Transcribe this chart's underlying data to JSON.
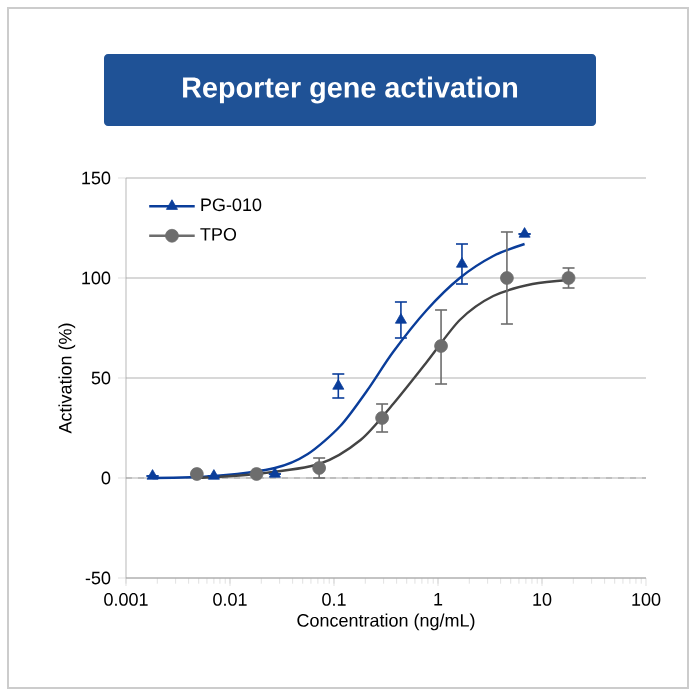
{
  "chart_data": {
    "type": "scatter",
    "title": "Reporter gene activation",
    "xlabel": "Concentration (ng/mL)",
    "ylabel": "Activation (%)",
    "log": "x",
    "xlim": [
      0.001,
      100
    ],
    "xticks": [
      0.001,
      0.01,
      0.1,
      1,
      10,
      100
    ],
    "ylim": [
      -50,
      150
    ],
    "yticks": [
      -50,
      0,
      50,
      100,
      150
    ],
    "grid": "y",
    "legend": "top left",
    "ref_lines": [
      {
        "axis": "y",
        "value": 0,
        "color": "#999999",
        "line_style": "dashed"
      }
    ],
    "series": [
      {
        "name": "PG-010",
        "marker": "triangle",
        "color": "#0a3d9a",
        "x": [
          0.0018,
          0.007,
          0.027,
          0.11,
          0.44,
          1.7,
          6.8
        ],
        "values": [
          1,
          1,
          2,
          46,
          79,
          107,
          122
        ],
        "errors": [
          null,
          null,
          null,
          6,
          9,
          10,
          null
        ]
      },
      {
        "name": "TPO",
        "marker": "circle",
        "color": "#6d6d6d",
        "x": [
          0.0048,
          0.018,
          0.072,
          0.29,
          1.07,
          4.6,
          18
        ],
        "values": [
          2,
          2,
          5,
          30,
          66,
          100,
          100
        ],
        "errors": [
          null,
          null,
          5,
          7,
          [
            47,
            84
          ],
          23,
          5
        ]
      },
      {
        "type": "line",
        "marker": "none",
        "color": "#0a3d9a",
        "x": [
          0.0018,
          0.0071,
          0.027,
          0.056,
          0.115,
          0.21,
          0.37,
          0.78,
          1.62,
          3.4,
          6.8
        ],
        "values": [
          0,
          1,
          5,
          12,
          26,
          44,
          63,
          84,
          100,
          111,
          117
        ]
      },
      {
        "type": "line",
        "marker": "none",
        "color": "#444444",
        "x": [
          0.0048,
          0.018,
          0.072,
          0.18,
          0.37,
          0.78,
          1.62,
          3.4,
          8.1,
          18
        ],
        "values": [
          0,
          2,
          7,
          19,
          37,
          58,
          79,
          91,
          97,
          99
        ]
      }
    ]
  }
}
